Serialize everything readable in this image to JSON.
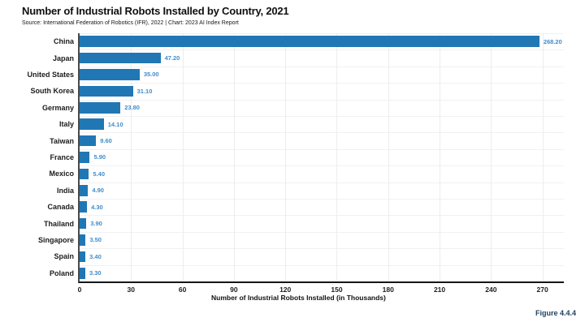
{
  "title": "Number of Industrial Robots Installed by Country, 2021",
  "subtitle": "Source: International Federation of Robotics (IFR), 2022 | Chart: 2023 AI Index Report",
  "figure_label": "Figure 4.4.4",
  "chart_data": {
    "type": "bar",
    "orientation": "horizontal",
    "title": "Number of Industrial Robots Installed by Country, 2021",
    "categories": [
      "China",
      "Japan",
      "United States",
      "South Korea",
      "Germany",
      "Italy",
      "Taiwan",
      "France",
      "Mexico",
      "India",
      "Canada",
      "Thailand",
      "Singapore",
      "Spain",
      "Poland"
    ],
    "values": [
      268.2,
      47.2,
      35.0,
      31.1,
      23.8,
      14.1,
      9.6,
      5.9,
      5.4,
      4.9,
      4.3,
      3.9,
      3.5,
      3.4,
      3.3
    ],
    "value_labels": [
      "268.20",
      "47.20",
      "35.00",
      "31.10",
      "23.80",
      "14.10",
      "9.60",
      "5.90",
      "5.40",
      "4.90",
      "4.30",
      "3.90",
      "3.50",
      "3.40",
      "3.30"
    ],
    "xlabel": "Number of Industrial Robots Installed (in Thousands)",
    "ylabel": "",
    "x_ticks": [
      0,
      30,
      60,
      90,
      120,
      150,
      180,
      210,
      240,
      270
    ],
    "xlim": [
      0,
      282.5
    ],
    "grid": true,
    "legend_position": "none",
    "bar_color": "#2077b4",
    "value_label_color": "#3f8dcd"
  }
}
